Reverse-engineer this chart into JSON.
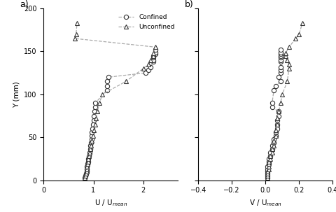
{
  "panel_a": {
    "label": "a)",
    "xlabel": "U / U$_{mean}$",
    "ylabel": "Y (mm)",
    "xlim": [
      0.3,
      2.7
    ],
    "ylim": [
      0,
      200
    ],
    "xticks": [
      0,
      1,
      2
    ],
    "yticks": [
      0,
      50,
      100,
      150,
      200
    ],
    "confined_U": [
      0.83,
      0.84,
      0.85,
      0.86,
      0.87,
      0.87,
      0.88,
      0.89,
      0.9,
      0.91,
      0.92,
      0.93,
      0.94,
      0.95,
      0.96,
      0.97,
      0.97,
      0.98,
      0.99,
      1.0,
      1.01,
      1.02,
      1.03,
      1.04,
      1.27,
      1.27,
      1.28,
      1.3,
      2.05,
      2.1,
      2.15,
      2.2,
      2.2,
      2.2,
      2.2,
      2.25,
      2.25,
      2.25
    ],
    "confined_Y": [
      3,
      5,
      8,
      10,
      13,
      16,
      19,
      22,
      25,
      28,
      32,
      36,
      40,
      44,
      48,
      52,
      56,
      60,
      65,
      70,
      75,
      80,
      85,
      90,
      105,
      110,
      115,
      120,
      125,
      128,
      132,
      138,
      140,
      143,
      145,
      147,
      149,
      152
    ],
    "unconfined_U": [
      0.83,
      0.84,
      0.85,
      0.86,
      0.87,
      0.87,
      0.88,
      0.89,
      0.9,
      0.91,
      0.92,
      0.93,
      0.95,
      0.97,
      0.99,
      1.01,
      1.03,
      1.05,
      1.08,
      1.12,
      1.18,
      1.65,
      2.0,
      2.1,
      2.15,
      2.2,
      2.2,
      2.25,
      0.63,
      0.65,
      0.67
    ],
    "unconfined_Y": [
      3,
      5,
      8,
      10,
      13,
      16,
      19,
      22,
      25,
      28,
      32,
      36,
      40,
      46,
      52,
      58,
      65,
      72,
      80,
      90,
      100,
      115,
      130,
      135,
      140,
      145,
      148,
      155,
      165,
      170,
      183
    ]
  },
  "panel_b": {
    "label": "b)",
    "xlabel": "V / U$_{mean}$",
    "xlim": [
      -0.4,
      0.4
    ],
    "ylim": [
      0,
      200
    ],
    "xticks": [
      -0.4,
      -0.2,
      0.0,
      0.2,
      0.4
    ],
    "yticks": [
      0,
      50,
      100,
      150,
      200
    ],
    "confined_V": [
      0.01,
      0.01,
      0.01,
      0.01,
      0.01,
      0.01,
      0.02,
      0.02,
      0.02,
      0.03,
      0.03,
      0.04,
      0.04,
      0.05,
      0.05,
      0.06,
      0.06,
      0.07,
      0.07,
      0.07,
      0.08,
      0.08,
      0.04,
      0.04,
      0.05,
      0.06,
      0.09,
      0.08,
      0.09,
      0.09,
      0.09,
      0.09,
      0.09,
      0.09,
      0.09,
      0.09,
      0.09,
      0.09
    ],
    "confined_V_Y": [
      3,
      5,
      8,
      10,
      13,
      16,
      19,
      22,
      25,
      28,
      32,
      36,
      40,
      44,
      48,
      52,
      56,
      60,
      65,
      70,
      75,
      80,
      85,
      90,
      105,
      110,
      115,
      120,
      125,
      128,
      132,
      138,
      140,
      143,
      145,
      147,
      149,
      152
    ],
    "unconfined_V": [
      0.01,
      0.01,
      0.01,
      0.01,
      0.02,
      0.02,
      0.02,
      0.02,
      0.03,
      0.03,
      0.04,
      0.04,
      0.05,
      0.05,
      0.06,
      0.06,
      0.07,
      0.07,
      0.08,
      0.09,
      0.1,
      0.13,
      0.14,
      0.14,
      0.13,
      0.12,
      0.12,
      0.14,
      0.18,
      0.2,
      0.22
    ],
    "unconfined_V_Y": [
      3,
      5,
      8,
      10,
      13,
      16,
      19,
      22,
      25,
      28,
      32,
      36,
      40,
      46,
      52,
      58,
      65,
      72,
      80,
      90,
      100,
      115,
      130,
      135,
      140,
      145,
      148,
      155,
      165,
      170,
      183
    ]
  },
  "line_color": "#aaaaaa",
  "bg_color": "#ffffff"
}
